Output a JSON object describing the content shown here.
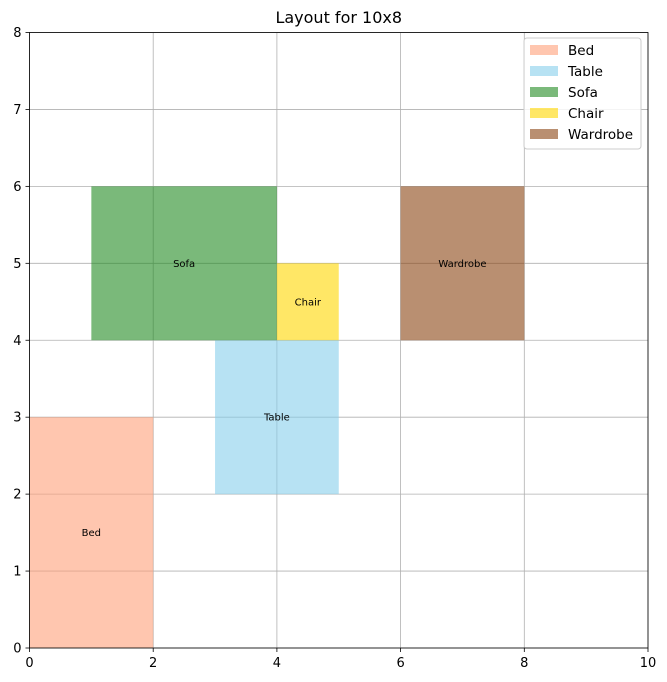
{
  "chart_data": {
    "type": "layout",
    "title": "Layout for 10x8",
    "xlim": [
      0,
      10
    ],
    "ylim": [
      0,
      8
    ],
    "x_ticks": [
      "0",
      "2",
      "4",
      "6",
      "8",
      "10"
    ],
    "y_ticks": [
      "0",
      "1",
      "2",
      "3",
      "4",
      "5",
      "6",
      "7",
      "8"
    ],
    "grid": true,
    "legend_position": "top-right",
    "items": [
      {
        "name": "Bed",
        "x": 0,
        "y": 0,
        "width": 2,
        "height": 3,
        "color": "#FFA07A"
      },
      {
        "name": "Table",
        "x": 3,
        "y": 2,
        "width": 2,
        "height": 2,
        "color": "#87CEEB"
      },
      {
        "name": "Sofa",
        "x": 1,
        "y": 4,
        "width": 3,
        "height": 2,
        "color": "#228B22"
      },
      {
        "name": "Chair",
        "x": 4,
        "y": 4,
        "width": 1,
        "height": 1,
        "color": "#FFD700"
      },
      {
        "name": "Wardrobe",
        "x": 6,
        "y": 4,
        "width": 2,
        "height": 2,
        "color": "#8B4513"
      }
    ],
    "alpha": 0.6
  }
}
